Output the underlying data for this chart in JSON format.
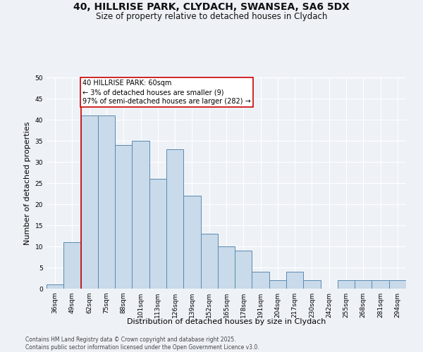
{
  "title1": "40, HILLRISE PARK, CLYDACH, SWANSEA, SA6 5DX",
  "title2": "Size of property relative to detached houses in Clydach",
  "xlabel": "Distribution of detached houses by size in Clydach",
  "ylabel": "Number of detached properties",
  "categories": [
    "36sqm",
    "49sqm",
    "62sqm",
    "75sqm",
    "88sqm",
    "101sqm",
    "113sqm",
    "126sqm",
    "139sqm",
    "152sqm",
    "165sqm",
    "178sqm",
    "191sqm",
    "204sqm",
    "217sqm",
    "230sqm",
    "242sqm",
    "255sqm",
    "268sqm",
    "281sqm",
    "294sqm"
  ],
  "values": [
    1,
    11,
    41,
    41,
    34,
    35,
    26,
    33,
    22,
    13,
    10,
    9,
    4,
    2,
    4,
    2,
    0,
    2,
    2,
    2,
    2
  ],
  "bar_color": "#c9daea",
  "bar_edge_color": "#5a8ab0",
  "red_line_index": 2,
  "annotation_text": "40 HILLRISE PARK: 60sqm\n← 3% of detached houses are smaller (9)\n97% of semi-detached houses are larger (282) →",
  "annotation_box_color": "#ffffff",
  "annotation_box_edge": "#cc0000",
  "red_line_color": "#cc0000",
  "background_color": "#eef2f7",
  "plot_background": "#eef2f7",
  "grid_color": "#ffffff",
  "ylim": [
    0,
    50
  ],
  "yticks": [
    0,
    5,
    10,
    15,
    20,
    25,
    30,
    35,
    40,
    45,
    50
  ],
  "footer": "Contains HM Land Registry data © Crown copyright and database right 2025.\nContains public sector information licensed under the Open Government Licence v3.0.",
  "title_fontsize": 10,
  "subtitle_fontsize": 8.5,
  "axis_label_fontsize": 8,
  "tick_fontsize": 6.5,
  "footer_fontsize": 5.5,
  "annotation_fontsize": 7
}
